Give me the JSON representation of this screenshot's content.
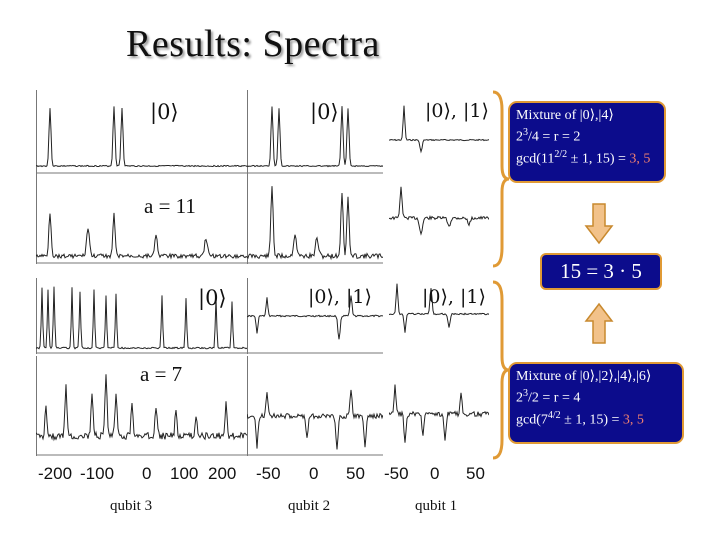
{
  "title": "Results: Spectra",
  "kets": {
    "top_q3": "|0⟩",
    "top_q2": "|0⟩",
    "top_q1": "|0⟩, |1⟩",
    "bot_q3": "|0⟩",
    "bot_q2": "|0⟩, |1⟩",
    "bot_q1": "|0⟩, |1⟩"
  },
  "a_labels": {
    "top": "a = 11",
    "bottom": "a = 7"
  },
  "axes": {
    "q3_ticks": [
      "-200",
      "-100",
      "0",
      "100",
      "200"
    ],
    "q2_ticks": [
      "-50",
      "0",
      "50"
    ],
    "q1_ticks": [
      "-50",
      "0",
      "50"
    ]
  },
  "qubit_labels": [
    "qubit 3",
    "qubit 2",
    "qubit 1"
  ],
  "box_top": {
    "line1": "Mixture of |0⟩,|4⟩",
    "line2_pre": "2",
    "line2_sup": "3",
    "line2_post": "/4 = r = 2",
    "line3_pre": "gcd(11",
    "line3_sup": "2/2",
    "line3_mid": " ± 1, 15) = ",
    "line3_hl": "3, 5"
  },
  "center_eq": "15 = 3 · 5",
  "box_bottom": {
    "line1": "Mixture of |0⟩,|2⟩,|4⟩,|6⟩",
    "line2_pre": "2",
    "line2_sup": "3",
    "line2_post": "/2 = r = 4",
    "line3_pre": "gcd(7",
    "line3_sup": "4/2",
    "line3_mid": " ± 1, 15) = ",
    "line3_hl": "3, 5"
  },
  "colors": {
    "box_bg": "#0c0c8c",
    "accent": "#e09a35",
    "highlight": "#f08070"
  }
}
